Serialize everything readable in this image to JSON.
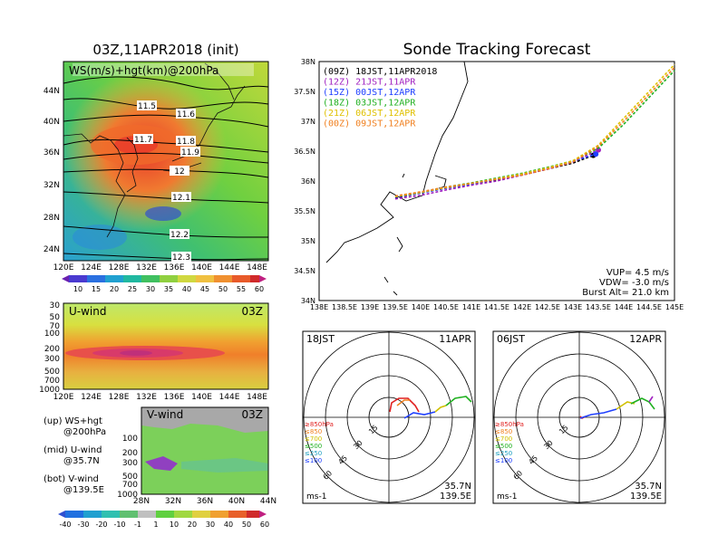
{
  "left_panel": {
    "title": "03Z,11APR2018 (init)",
    "map_label": "WS(m/s)+hgt(km)@200hPa",
    "lat_ticks": [
      "44N",
      "40N",
      "36N",
      "32N",
      "28N",
      "24N"
    ],
    "lon_ticks": [
      "120E",
      "124E",
      "128E",
      "132E",
      "136E",
      "140E",
      "144E",
      "148E"
    ],
    "contour_labels": [
      "11.5",
      "11.6",
      "11.7",
      "11.8",
      "11.9",
      "12",
      "12.1",
      "12.2",
      "12.3"
    ],
    "ws_colorbar": [
      "10",
      "15",
      "20",
      "25",
      "30",
      "35",
      "40",
      "45",
      "50",
      "55",
      "60"
    ],
    "uwind_title": "U-wind",
    "uwind_time": "03Z",
    "pressure_ticks": [
      "30",
      "50",
      "70",
      "100",
      "200",
      "300",
      "500",
      "700",
      "1000"
    ],
    "vwind_title": "V-wind",
    "vwind_time": "03Z",
    "vwind_lat_ticks": [
      "28N",
      "32N",
      "36N",
      "40N",
      "44N"
    ],
    "notes": [
      {
        "l1": "(up) WS+hgt",
        "l2": "@200hPa"
      },
      {
        "l1": "(mid) U-wind",
        "l2": "@35.7N"
      },
      {
        "l1": "(bot) V-wind",
        "l2": "@139.5E"
      }
    ],
    "wind_colorbar": [
      "-40",
      "-30",
      "-20",
      "-10",
      "-1",
      "1",
      "10",
      "20",
      "30",
      "40",
      "50",
      "60"
    ]
  },
  "track_panel": {
    "title": "Sonde Tracking Forecast",
    "legend": [
      {
        "text": "(09Z) 18JST,11APR2018",
        "color": "#000000"
      },
      {
        "text": "(12Z) 21JST,11APR",
        "color": "#a020c0"
      },
      {
        "text": "(15Z) 00JST,12APR",
        "color": "#2040ff"
      },
      {
        "text": "(18Z) 03JST,12APR",
        "color": "#20b020"
      },
      {
        "text": "(21Z) 06JST,12APR",
        "color": "#e0c000"
      },
      {
        "text": "(00Z) 09JST,12APR",
        "color": "#f08020"
      }
    ],
    "lat_ticks": [
      "38N",
      "37.5N",
      "37N",
      "36.5N",
      "36N",
      "35.5N",
      "35N",
      "34.5N",
      "34N"
    ],
    "lon_ticks": [
      "138E",
      "138.5E",
      "139E",
      "139.5E",
      "140E",
      "140.5E",
      "141E",
      "141.5E",
      "142E",
      "142.5E",
      "143E",
      "143.5E",
      "144E",
      "144.5E",
      "145E"
    ],
    "params": [
      "VUP= 4.5 m/s",
      "VDW= -3.0 m/s",
      "Burst Alt= 21.0 km"
    ]
  },
  "hodographs": [
    {
      "time": "18JST",
      "date": "11APR",
      "pos1": "35.7N",
      "pos2": "139.5E",
      "unit": "ms-1"
    },
    {
      "time": "06JST",
      "date": "12APR",
      "pos1": "35.7N",
      "pos2": "139.5E",
      "unit": "ms-1"
    }
  ],
  "hodo_rings": [
    "15",
    "30",
    "45",
    "60"
  ],
  "hodo_legend": [
    {
      "text": "≥850hPa",
      "color": "#e02020"
    },
    {
      "text": "≤850",
      "color": "#f08020"
    },
    {
      "text": "≤700",
      "color": "#d0c000"
    },
    {
      "text": "≤500",
      "color": "#20b020"
    },
    {
      "text": "≤250",
      "color": "#20a0c0"
    },
    {
      "text": "≤100",
      "color": "#2040ff"
    }
  ],
  "chart_data": {
    "type": "line",
    "title": "Sonde Tracking Forecast",
    "xlabel": "",
    "ylabel": "",
    "xlim": [
      138,
      145
    ],
    "ylim": [
      34,
      38
    ],
    "series": [
      {
        "name": "(09Z) 18JST,11APR2018",
        "x": [
          139.5,
          140.0,
          140.5,
          141.0,
          141.5,
          142.0,
          142.5,
          143.0,
          143.4
        ],
        "y": [
          35.72,
          35.8,
          35.88,
          35.95,
          36.02,
          36.1,
          36.2,
          36.3,
          36.43
        ]
      },
      {
        "name": "(12Z) 21JST,11APR",
        "x": [
          139.5,
          140.0,
          140.5,
          141.0,
          141.5,
          142.0,
          142.5,
          143.0,
          143.5
        ],
        "y": [
          35.7,
          35.76,
          35.85,
          35.93,
          36.0,
          36.1,
          36.2,
          36.32,
          36.52
        ]
      },
      {
        "name": "(15Z) 00JST,12APR",
        "x": [
          139.5,
          140.0,
          140.5,
          141.0,
          141.5,
          142.0,
          142.5,
          143.0,
          143.45
        ],
        "y": [
          35.73,
          35.8,
          35.88,
          35.95,
          36.03,
          36.12,
          36.22,
          36.33,
          36.45
        ]
      },
      {
        "name": "(18Z) 03JST,12APR",
        "x": [
          139.5,
          140.0,
          140.5,
          141.0,
          141.5,
          142.0,
          142.5,
          143.0,
          143.5,
          144.0,
          144.5,
          145.0
        ],
        "y": [
          35.74,
          35.81,
          35.9,
          35.97,
          36.05,
          36.13,
          36.23,
          36.34,
          36.55,
          36.95,
          37.4,
          37.85
        ]
      },
      {
        "name": "(21Z) 06JST,12APR",
        "x": [
          139.5,
          140.0,
          140.5,
          141.0,
          141.5,
          142.0,
          142.5,
          143.0,
          143.5,
          144.0,
          144.5,
          145.0
        ],
        "y": [
          35.74,
          35.81,
          35.89,
          35.96,
          36.04,
          36.12,
          36.22,
          36.34,
          36.6,
          37.05,
          37.5,
          37.95
        ]
      },
      {
        "name": "(00Z) 09JST,12APR",
        "x": [
          139.5,
          140.0,
          140.5,
          141.0,
          141.5,
          142.0,
          142.5,
          143.0,
          143.5,
          144.0,
          144.5,
          145.0
        ],
        "y": [
          35.75,
          35.82,
          35.9,
          35.96,
          36.03,
          36.1,
          36.2,
          36.32,
          36.58,
          37.0,
          37.45,
          37.9
        ]
      }
    ]
  }
}
